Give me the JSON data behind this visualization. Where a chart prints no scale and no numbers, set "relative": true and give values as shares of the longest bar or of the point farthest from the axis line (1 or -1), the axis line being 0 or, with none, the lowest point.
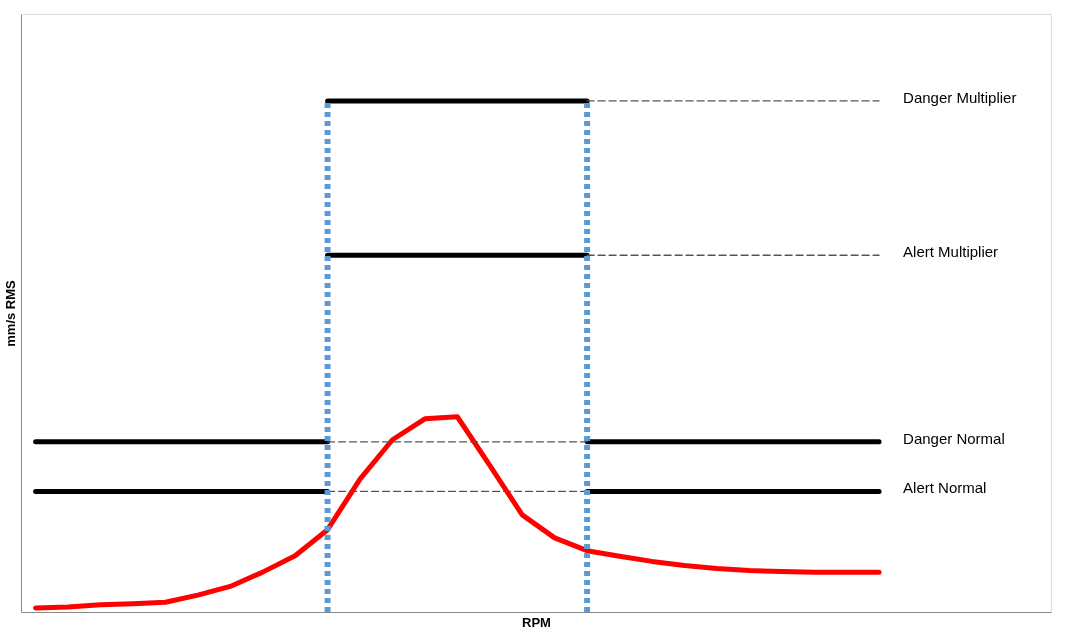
{
  "chart_data": {
    "type": "line",
    "relative": true,
    "xlabel": "RPM",
    "ylabel": "mm/s RMS",
    "categories": [
      null,
      null,
      null,
      null,
      null,
      null,
      null,
      null,
      null,
      null,
      null,
      null,
      null,
      null,
      null,
      null,
      null,
      null,
      null,
      null,
      null,
      null,
      null,
      null,
      null,
      null,
      null
    ],
    "tick_labels": false,
    "marker": "none",
    "series": [
      {
        "color": "#ff0000",
        "line_style": "solid",
        "values": [
          0.008,
          0.01,
          0.014,
          0.016,
          0.019,
          0.033,
          0.05,
          0.078,
          0.11,
          0.161,
          0.26,
          0.337,
          0.378,
          0.382,
          0.287,
          0.19,
          0.145,
          0.12,
          0.109,
          0.099,
          0.091,
          0.085,
          0.081,
          0.079,
          0.078,
          0.078,
          0.078
        ]
      },
      {
        "color": "#000000",
        "line_style": "solid",
        "values": [
          0.333,
          0.333,
          0.333,
          0.333,
          0.333,
          0.333,
          0.333,
          0.333,
          0.333,
          0.333,
          null,
          null,
          null,
          null,
          null,
          null,
          null,
          null,
          null,
          null,
          null,
          null,
          null,
          null,
          null,
          null,
          null
        ]
      },
      {
        "name": "Danger Normal",
        "color": "#000000",
        "line_style": "solid",
        "values": [
          null,
          null,
          null,
          null,
          null,
          null,
          null,
          null,
          null,
          null,
          null,
          null,
          null,
          null,
          null,
          null,
          null,
          0.333,
          0.333,
          0.333,
          0.333,
          0.333,
          0.333,
          0.333,
          0.333,
          0.333,
          0.333
        ]
      },
      {
        "color": "#000000",
        "line_style": "solid",
        "values": [
          0.236,
          0.236,
          0.236,
          0.236,
          0.236,
          0.236,
          0.236,
          0.236,
          0.236,
          0.236,
          null,
          null,
          null,
          null,
          null,
          null,
          null,
          null,
          null,
          null,
          null,
          null,
          null,
          null,
          null,
          null,
          null
        ]
      },
      {
        "name": "Alert Normal",
        "color": "#000000",
        "line_style": "solid",
        "values": [
          null,
          null,
          null,
          null,
          null,
          null,
          null,
          null,
          null,
          null,
          null,
          null,
          null,
          null,
          null,
          null,
          null,
          0.236,
          0.236,
          0.236,
          0.236,
          0.236,
          0.236,
          0.236,
          0.236,
          0.236,
          0.236
        ]
      },
      {
        "color": "#000000",
        "line_style": "solid",
        "values": [
          null,
          null,
          null,
          null,
          null,
          null,
          null,
          null,
          null,
          1.0,
          1.0,
          1.0,
          1.0,
          1.0,
          1.0,
          1.0,
          1.0,
          1.0,
          null,
          null,
          null,
          null,
          null,
          null,
          null,
          null,
          null
        ]
      },
      {
        "color": "#000000",
        "line_style": "solid",
        "values": [
          null,
          null,
          null,
          null,
          null,
          null,
          null,
          null,
          null,
          0.698,
          0.698,
          0.698,
          0.698,
          0.698,
          0.698,
          0.698,
          0.698,
          0.698,
          null,
          null,
          null,
          null,
          null,
          null,
          null,
          null,
          null
        ]
      },
      {
        "name": "Danger Multiplier",
        "color": "#555555",
        "line_style": "dashed",
        "values": [
          null,
          null,
          null,
          null,
          null,
          null,
          null,
          null,
          null,
          null,
          null,
          null,
          null,
          null,
          null,
          null,
          null,
          1.0,
          1.0,
          1.0,
          1.0,
          1.0,
          1.0,
          1.0,
          1.0,
          1.0,
          1.0
        ]
      },
      {
        "name": "Alert Multiplier",
        "color": "#555555",
        "line_style": "dashed",
        "values": [
          null,
          null,
          null,
          null,
          null,
          null,
          null,
          null,
          null,
          null,
          null,
          null,
          null,
          null,
          null,
          null,
          null,
          0.698,
          0.698,
          0.698,
          0.698,
          0.698,
          0.698,
          0.698,
          0.698,
          0.698,
          0.698
        ]
      },
      {
        "color": "#555555",
        "line_style": "dashed",
        "values": [
          null,
          null,
          null,
          null,
          null,
          null,
          null,
          null,
          null,
          0.333,
          0.333,
          0.333,
          0.333,
          0.333,
          0.333,
          0.333,
          0.333,
          0.333,
          null,
          null,
          null,
          null,
          null,
          null,
          null,
          null,
          null
        ]
      },
      {
        "color": "#555555",
        "line_style": "dashed",
        "values": [
          null,
          null,
          null,
          null,
          null,
          null,
          null,
          null,
          null,
          0.236,
          0.236,
          0.236,
          0.236,
          0.236,
          0.236,
          0.236,
          0.236,
          0.236,
          null,
          null,
          null,
          null,
          null,
          null,
          null,
          null,
          null
        ]
      }
    ]
  }
}
